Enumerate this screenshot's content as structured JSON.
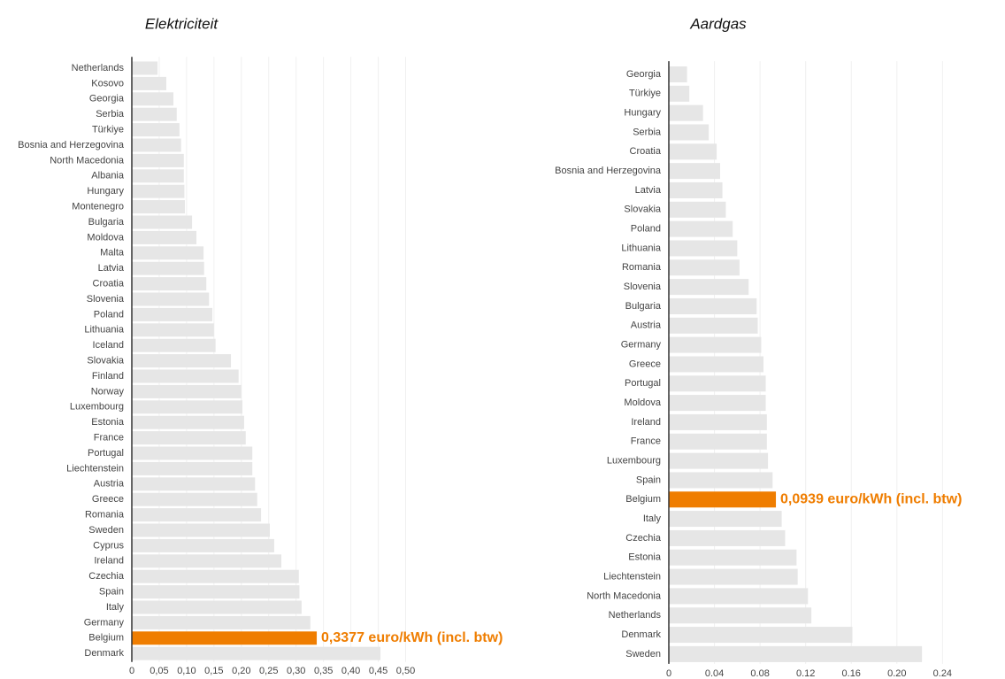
{
  "chart_data": [
    {
      "type": "barh",
      "title": "Elektriciteit",
      "categories": [
        "Netherlands",
        "Kosovo",
        "Georgia",
        "Serbia",
        "Türkiye",
        "Bosnia and Herzegovina",
        "North Macedonia",
        "Albania",
        "Hungary",
        "Montenegro",
        "Bulgaria",
        "Moldova",
        "Malta",
        "Latvia",
        "Croatia",
        "Slovenia",
        "Poland",
        "Lithuania",
        "Iceland",
        "Slovakia",
        "Finland",
        "Norway",
        "Luxembourg",
        "Estonia",
        "France",
        "Portugal",
        "Liechtenstein",
        "Austria",
        "Greece",
        "Romania",
        "Sweden",
        "Cyprus",
        "Ireland",
        "Czechia",
        "Spain",
        "Italy",
        "Germany",
        "Belgium",
        "Denmark"
      ],
      "values": [
        0.047,
        0.063,
        0.076,
        0.082,
        0.087,
        0.09,
        0.095,
        0.095,
        0.096,
        0.097,
        0.11,
        0.118,
        0.131,
        0.132,
        0.136,
        0.141,
        0.147,
        0.15,
        0.153,
        0.181,
        0.195,
        0.2,
        0.202,
        0.205,
        0.208,
        0.22,
        0.22,
        0.225,
        0.229,
        0.236,
        0.252,
        0.26,
        0.273,
        0.305,
        0.306,
        0.31,
        0.326,
        0.3377,
        0.454
      ],
      "value_labels": [
        null,
        null,
        null,
        null,
        null,
        null,
        null,
        null,
        null,
        null,
        null,
        null,
        null,
        null,
        null,
        null,
        null,
        null,
        null,
        null,
        null,
        null,
        null,
        null,
        null,
        null,
        null,
        null,
        null,
        null,
        null,
        null,
        null,
        null,
        null,
        null,
        null,
        "0,3377 euro/kWh (incl. btw)",
        null
      ],
      "color": "#e6e6e6",
      "highlight": {
        "index": 37,
        "color": "#ef7d00"
      },
      "xlim": [
        0,
        0.5
      ],
      "xticks": [
        0,
        {
          "value": 0.05,
          "label": "0,05"
        },
        {
          "value": 0.1,
          "label": "0,10"
        },
        {
          "value": 0.15,
          "label": "0,15"
        },
        {
          "value": 0.2,
          "label": "0,20"
        },
        {
          "value": 0.25,
          "label": "0,25"
        },
        {
          "value": 0.3,
          "label": "0,30"
        },
        {
          "value": 0.35,
          "label": "0,35"
        },
        {
          "value": 0.4,
          "label": "0,40"
        },
        {
          "value": 0.45,
          "label": "0,45"
        },
        {
          "value": 0.5,
          "label": "0,50"
        }
      ],
      "grid": true
    },
    {
      "type": "barh",
      "title": "Aardgas",
      "categories": [
        "Georgia",
        "Türkiye",
        "Hungary",
        "Serbia",
        "Croatia",
        "Bosnia and Herzegovina",
        "Latvia",
        "Slovakia",
        "Poland",
        "Lithuania",
        "Romania",
        "Slovenia",
        "Bulgaria",
        "Austria",
        "Germany",
        "Greece",
        "Portugal",
        "Moldova",
        "Ireland",
        "France",
        "Luxembourg",
        "Spain",
        "Belgium",
        "Italy",
        "Czechia",
        "Estonia",
        "Liechtenstein",
        "North Macedonia",
        "Netherlands",
        "Denmark",
        "Sweden"
      ],
      "values": [
        0.016,
        0.018,
        0.03,
        0.035,
        0.042,
        0.045,
        0.047,
        0.05,
        0.056,
        0.06,
        0.062,
        0.07,
        0.077,
        0.078,
        0.081,
        0.083,
        0.085,
        0.085,
        0.086,
        0.086,
        0.087,
        0.091,
        0.0939,
        0.099,
        0.102,
        0.112,
        0.113,
        0.122,
        0.125,
        0.161,
        0.222
      ],
      "value_labels": [
        null,
        null,
        null,
        null,
        null,
        null,
        null,
        null,
        null,
        null,
        null,
        null,
        null,
        null,
        null,
        null,
        null,
        null,
        null,
        null,
        null,
        null,
        "0,0939 euro/kWh (incl. btw)",
        null,
        null,
        null,
        null,
        null,
        null,
        null,
        null
      ],
      "color": "#e6e6e6",
      "highlight": {
        "index": 22,
        "color": "#ef7d00"
      },
      "xlim": [
        0,
        0.25
      ],
      "xticks": [
        0,
        0.04,
        0.08,
        0.12,
        0.16,
        {
          "value": 0.2,
          "label": "0.20"
        },
        0.24
      ],
      "grid": true
    }
  ]
}
